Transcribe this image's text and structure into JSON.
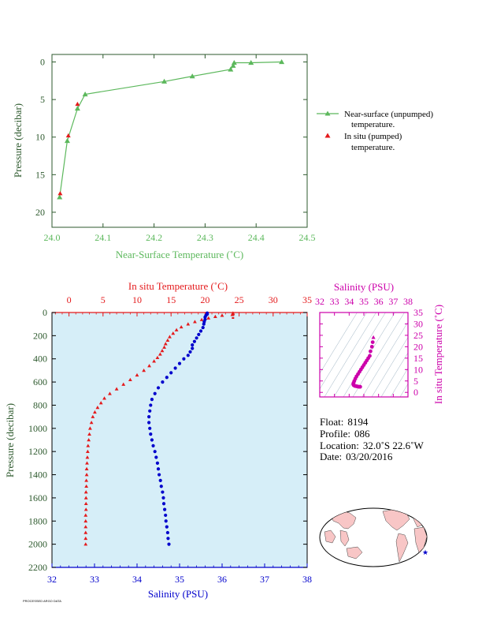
{
  "colors": {
    "green": "#5cb85c",
    "red": "#e41a1c",
    "blue": "#0000cc",
    "magenta": "#cc00aa",
    "axis_dark": "#2e5a2e",
    "panel_bg": "#d6eef8",
    "land": "#f8c6c6"
  },
  "chart_data": [
    {
      "id": "near-surface",
      "type": "scatter",
      "xlabel": "Near-Surface Temperature (˚C)",
      "ylabel": "Pressure (decibar)",
      "xlim": [
        24.0,
        24.5
      ],
      "ylim": [
        22,
        -1
      ],
      "xticks": [
        "24.0",
        "24.1",
        "24.2",
        "24.3",
        "24.4",
        "24.5"
      ],
      "yticks": [
        "0",
        "5",
        "10",
        "15",
        "20"
      ],
      "series": [
        {
          "name_line1": "Near-surface (unpumped)",
          "name_line2": "temperature.",
          "marker": "triangle",
          "connected": true,
          "points": [
            [
              24.45,
              0.0
            ],
            [
              24.39,
              0.1
            ],
            [
              24.357,
              0.1
            ],
            [
              24.355,
              0.5
            ],
            [
              24.35,
              1.0
            ],
            [
              24.275,
              1.9
            ],
            [
              24.22,
              2.6
            ],
            [
              24.065,
              4.3
            ],
            [
              24.05,
              6.2
            ],
            [
              24.03,
              10.5
            ],
            [
              24.015,
              18.0
            ]
          ]
        },
        {
          "name_line1": "In situ (pumped)",
          "name_line2": "temperature.",
          "marker": "triangle",
          "connected": false,
          "points": [
            [
              24.05,
              5.6
            ],
            [
              24.032,
              9.8
            ],
            [
              24.016,
              17.5
            ]
          ]
        }
      ]
    },
    {
      "id": "profile",
      "type": "scatter",
      "top_xlabel": "In situ Temperature (˚C)",
      "bottom_xlabel": "Salinity (PSU)",
      "ylabel": "Pressure (decibar)",
      "temp_xlim": [
        -2.5,
        35
      ],
      "sal_xlim": [
        32,
        38
      ],
      "ylim": [
        2200,
        0
      ],
      "temp_ticks": [
        "0",
        "5",
        "10",
        "15",
        "20",
        "25",
        "30",
        "35"
      ],
      "sal_ticks": [
        "32",
        "33",
        "34",
        "35",
        "36",
        "37",
        "38"
      ],
      "yticks": [
        "0",
        "200",
        "400",
        "600",
        "800",
        "1000",
        "1200",
        "1400",
        "1600",
        "1800",
        "2000",
        "2200"
      ],
      "temperature": [
        [
          24.1,
          5
        ],
        [
          24.1,
          12
        ],
        [
          24.0,
          18
        ],
        [
          22.5,
          25
        ],
        [
          21.5,
          35
        ],
        [
          20.5,
          48
        ],
        [
          19.5,
          62
        ],
        [
          18.5,
          80
        ],
        [
          17.5,
          100
        ],
        [
          16.5,
          125
        ],
        [
          15.8,
          150
        ],
        [
          15.3,
          180
        ],
        [
          14.8,
          210
        ],
        [
          14.5,
          240
        ],
        [
          14.2,
          270
        ],
        [
          14.0,
          300
        ],
        [
          13.7,
          330
        ],
        [
          13.4,
          360
        ],
        [
          13.0,
          390
        ],
        [
          12.5,
          420
        ],
        [
          11.8,
          460
        ],
        [
          11.0,
          500
        ],
        [
          10.0,
          540
        ],
        [
          9.0,
          580
        ],
        [
          8.0,
          620
        ],
        [
          7.0,
          660
        ],
        [
          6.0,
          700
        ],
        [
          5.2,
          740
        ],
        [
          4.7,
          780
        ],
        [
          4.2,
          820
        ],
        [
          3.8,
          860
        ],
        [
          3.5,
          900
        ],
        [
          3.3,
          950
        ],
        [
          3.1,
          1000
        ],
        [
          3.0,
          1050
        ],
        [
          2.9,
          1100
        ],
        [
          2.8,
          1150
        ],
        [
          2.75,
          1200
        ],
        [
          2.7,
          1250
        ],
        [
          2.65,
          1300
        ],
        [
          2.6,
          1350
        ],
        [
          2.6,
          1400
        ],
        [
          2.55,
          1450
        ],
        [
          2.55,
          1500
        ],
        [
          2.5,
          1550
        ],
        [
          2.5,
          1600
        ],
        [
          2.5,
          1650
        ],
        [
          2.5,
          1700
        ],
        [
          2.45,
          1750
        ],
        [
          2.45,
          1800
        ],
        [
          2.45,
          1850
        ],
        [
          2.45,
          1900
        ],
        [
          2.45,
          1950
        ],
        [
          2.45,
          2000
        ]
      ],
      "salinity": [
        [
          35.65,
          5
        ],
        [
          35.65,
          15
        ],
        [
          35.62,
          25
        ],
        [
          35.6,
          40
        ],
        [
          35.6,
          60
        ],
        [
          35.58,
          80
        ],
        [
          35.57,
          100
        ],
        [
          35.55,
          130
        ],
        [
          35.5,
          160
        ],
        [
          35.45,
          190
        ],
        [
          35.4,
          220
        ],
        [
          35.35,
          250
        ],
        [
          35.3,
          280
        ],
        [
          35.3,
          310
        ],
        [
          35.25,
          340
        ],
        [
          35.2,
          370
        ],
        [
          35.1,
          400
        ],
        [
          35.0,
          440
        ],
        [
          34.9,
          480
        ],
        [
          34.8,
          520
        ],
        [
          34.7,
          560
        ],
        [
          34.6,
          600
        ],
        [
          34.5,
          650
        ],
        [
          34.42,
          700
        ],
        [
          34.35,
          750
        ],
        [
          34.32,
          800
        ],
        [
          34.3,
          850
        ],
        [
          34.28,
          900
        ],
        [
          34.28,
          950
        ],
        [
          34.3,
          1000
        ],
        [
          34.32,
          1050
        ],
        [
          34.35,
          1100
        ],
        [
          34.38,
          1150
        ],
        [
          34.42,
          1200
        ],
        [
          34.45,
          1250
        ],
        [
          34.48,
          1300
        ],
        [
          34.5,
          1350
        ],
        [
          34.52,
          1400
        ],
        [
          34.55,
          1450
        ],
        [
          34.57,
          1500
        ],
        [
          34.6,
          1550
        ],
        [
          34.62,
          1600
        ],
        [
          34.63,
          1650
        ],
        [
          34.65,
          1700
        ],
        [
          34.67,
          1750
        ],
        [
          34.68,
          1800
        ],
        [
          34.7,
          1850
        ],
        [
          34.72,
          1900
        ],
        [
          34.73,
          1950
        ],
        [
          34.75,
          2000
        ]
      ]
    },
    {
      "id": "ts-diagram",
      "type": "scatter",
      "top_xlabel": "Salinity (PSU)",
      "right_ylabel": "In situ Temperature (˚C)",
      "xlim": [
        32,
        38
      ],
      "ylim": [
        -2,
        35
      ],
      "xticks": [
        "32",
        "33",
        "34",
        "35",
        "36",
        "37",
        "38"
      ],
      "yticks": [
        "0",
        "5",
        "10",
        "15",
        "20",
        "25",
        "30",
        "35"
      ],
      "points": [
        [
          35.65,
          24.1
        ],
        [
          35.6,
          22.0
        ],
        [
          35.55,
          20.0
        ],
        [
          35.45,
          18.0
        ],
        [
          35.4,
          16.0
        ],
        [
          35.3,
          15.0
        ],
        [
          35.2,
          14.0
        ],
        [
          35.1,
          13.0
        ],
        [
          35.0,
          12.0
        ],
        [
          34.9,
          11.0
        ],
        [
          34.8,
          10.0
        ],
        [
          34.7,
          9.0
        ],
        [
          34.6,
          8.0
        ],
        [
          34.5,
          7.0
        ],
        [
          34.42,
          6.0
        ],
        [
          34.35,
          5.0
        ],
        [
          34.3,
          4.2
        ],
        [
          34.28,
          3.6
        ],
        [
          34.3,
          3.2
        ],
        [
          34.35,
          3.0
        ],
        [
          34.4,
          2.8
        ],
        [
          34.48,
          2.7
        ],
        [
          34.55,
          2.6
        ],
        [
          34.62,
          2.5
        ],
        [
          34.7,
          2.45
        ],
        [
          34.75,
          2.45
        ]
      ]
    }
  ],
  "info": {
    "float_label": "Float:",
    "float_value": "8194",
    "profile_label": "Profile:",
    "profile_value": "086",
    "location_label": "Location:",
    "location_value": "32.0˚S  22.6˚W",
    "date_label": "Date:",
    "date_value": "03/20/2016"
  },
  "map": {
    "marker": "float-location-star"
  },
  "footer": {
    "text": "PROCESSED ARGO DATA"
  }
}
